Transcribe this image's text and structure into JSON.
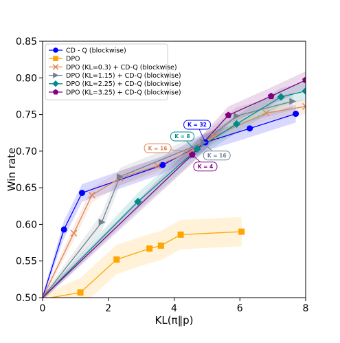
{
  "chart_data": {
    "type": "line",
    "title": "",
    "xlabel": "KL(π‖p)",
    "ylabel": "Win rate",
    "xlim": [
      0,
      8
    ],
    "ylim": [
      0.5,
      0.85
    ],
    "xticks": [
      "0",
      "2",
      "4",
      "6",
      "8"
    ],
    "yticks": [
      "0.50",
      "0.55",
      "0.60",
      "0.65",
      "0.70",
      "0.75",
      "0.80",
      "0.85"
    ],
    "grid": false,
    "legend_position": "top-left",
    "series": [
      {
        "name": "CD - Q (blockwise)",
        "color": "#0000ff",
        "marker": "circle",
        "x": [
          0,
          0.65,
          1.2,
          3.65,
          4.95,
          6.3,
          7.7
        ],
        "y": [
          0.5,
          0.593,
          0.643,
          0.681,
          0.712,
          0.731,
          0.751
        ],
        "band": 0.012
      },
      {
        "name": "DPO",
        "color": "#ffa500",
        "marker": "square",
        "x": [
          0,
          1.15,
          2.25,
          3.25,
          3.6,
          4.2,
          6.05
        ],
        "y": [
          0.498,
          0.507,
          0.552,
          0.567,
          0.571,
          0.586,
          0.59
        ],
        "band": 0.02
      },
      {
        "name": "DPO (KL=0.3) + CD-Q (blockwise)",
        "color": "#dd8452",
        "marker": "x",
        "x": [
          0,
          0.95,
          1.5,
          2.35,
          3.5,
          4.5,
          5.2,
          6.8,
          8.0
        ],
        "y": [
          0.5,
          0.588,
          0.64,
          0.663,
          0.68,
          0.7,
          0.72,
          0.752,
          0.761
        ],
        "band": 0.01
      },
      {
        "name": "DPO (KL=1.15) + CD-Q (blockwise)",
        "color": "#708090",
        "marker": "triangle-right",
        "x": [
          0,
          1.8,
          2.35,
          4.9,
          5.9,
          7.6
        ],
        "y": [
          0.5,
          0.603,
          0.665,
          0.712,
          0.748,
          0.768
        ],
        "band": 0.012
      },
      {
        "name": "DPO (KL=2.25) + CD-Q (blockwise)",
        "color": "#008b8b",
        "marker": "diamond",
        "x": [
          0,
          2.9,
          4.7,
          5.9,
          7.25,
          8.0
        ],
        "y": [
          0.5,
          0.631,
          0.703,
          0.737,
          0.774,
          0.782
        ],
        "band": 0.012
      },
      {
        "name": "DPO (KL=3.25) + CD-Q (blockwise)",
        "color": "#800080",
        "marker": "pentagon",
        "x": [
          0,
          4.55,
          5.65,
          6.95,
          8.0
        ],
        "y": [
          0.5,
          0.695,
          0.749,
          0.775,
          0.797
        ],
        "band": 0.012
      }
    ],
    "annotations": [
      {
        "text": "K = 32",
        "color": "#0000ff",
        "x": 4.95,
        "y": 0.712,
        "tx": 4.7,
        "ty": 0.736
      },
      {
        "text": "K = 8",
        "color": "#008b8b",
        "x": 4.6,
        "y": 0.703,
        "tx": 4.25,
        "ty": 0.72
      },
      {
        "text": "K = 16",
        "color": "#dd8452",
        "x": 4.45,
        "y": 0.699,
        "tx": 3.5,
        "ty": 0.704
      },
      {
        "text": "K = 16",
        "color": "#708090",
        "x": 5.0,
        "y": 0.707,
        "tx": 5.3,
        "ty": 0.694
      },
      {
        "text": "K = 4",
        "color": "#800080",
        "x": 4.55,
        "y": 0.695,
        "tx": 4.95,
        "ty": 0.679
      }
    ]
  }
}
